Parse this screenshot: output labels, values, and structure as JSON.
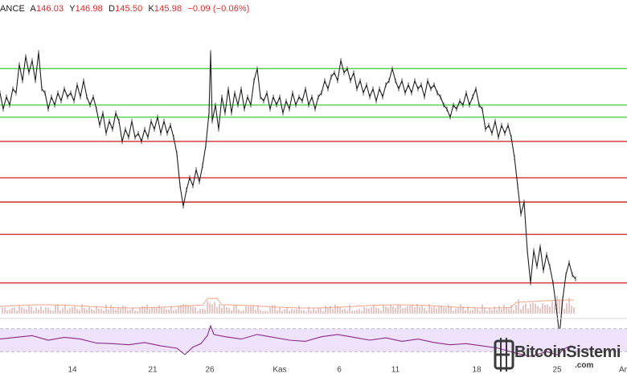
{
  "header": {
    "exchange_fragment": "ANCE",
    "open_label": "A",
    "open_value": "146.03",
    "high_label": "Y",
    "high_value": "146.98",
    "low_label": "D",
    "low_value": "145.50",
    "close_label": "K",
    "close_value": "145.98",
    "change": "−0.09 (−0.06%)"
  },
  "watermark": {
    "brand": "BitcoinSistemi",
    "suffix": ".com",
    "icon": "bitcoin-b-icon"
  },
  "colors": {
    "price_line": "#1f1f1f",
    "support_lines": "#4cd14c",
    "resistance_lines": "#d32f2f",
    "current_price_line": "#f2b4b4",
    "rsi_line": "#8a2b8a",
    "rsi_band_fill": "#efe2fb",
    "volume_bars": "#e6c8c8",
    "volume_ma": "#f0a58a"
  },
  "chart_data": {
    "type": "line",
    "xaxis_ticks": [
      "14",
      "21",
      "26",
      "Kas",
      "6",
      "11",
      "18",
      "25",
      "Ar"
    ],
    "horizontal_levels": {
      "green": [
        188.5,
        184.0,
        182.5
      ],
      "red": [
        179.5,
        175.0,
        172.0,
        168.0,
        162.0
      ],
      "current_price": 145.98
    },
    "price": {
      "ylim": [
        158,
        195
      ],
      "points": [
        [
          0,
          185.5
        ],
        [
          4,
          183.5
        ],
        [
          8,
          185
        ],
        [
          12,
          184
        ],
        [
          16,
          186
        ],
        [
          20,
          185.5
        ],
        [
          24,
          189
        ],
        [
          28,
          187
        ],
        [
          32,
          190
        ],
        [
          36,
          188
        ],
        [
          40,
          189.5
        ],
        [
          44,
          187
        ],
        [
          48,
          190.5
        ],
        [
          52,
          186
        ],
        [
          56,
          185.5
        ],
        [
          60,
          183.5
        ],
        [
          64,
          185
        ],
        [
          68,
          184
        ],
        [
          72,
          185.5
        ],
        [
          76,
          184.5
        ],
        [
          80,
          186
        ],
        [
          84,
          185
        ],
        [
          88,
          185.5
        ],
        [
          92,
          184.5
        ],
        [
          96,
          186.5
        ],
        [
          100,
          185
        ],
        [
          104,
          187
        ],
        [
          108,
          185
        ],
        [
          112,
          184
        ],
        [
          116,
          185
        ],
        [
          120,
          183.5
        ],
        [
          124,
          181.5
        ],
        [
          128,
          183
        ],
        [
          132,
          180.5
        ],
        [
          136,
          182
        ],
        [
          140,
          181
        ],
        [
          144,
          183
        ],
        [
          148,
          182
        ],
        [
          152,
          179.5
        ],
        [
          156,
          181
        ],
        [
          160,
          180
        ],
        [
          164,
          182
        ],
        [
          168,
          180
        ],
        [
          172,
          180.5
        ],
        [
          176,
          179.5
        ],
        [
          180,
          181
        ],
        [
          184,
          180
        ],
        [
          188,
          182
        ],
        [
          192,
          181
        ],
        [
          196,
          182.5
        ],
        [
          200,
          180.5
        ],
        [
          204,
          182
        ],
        [
          208,
          180.5
        ],
        [
          212,
          181.5
        ],
        [
          216,
          180
        ],
        [
          220,
          178
        ],
        [
          224,
          174
        ],
        [
          228,
          171.5
        ],
        [
          232,
          173.5
        ],
        [
          236,
          175
        ],
        [
          240,
          174
        ],
        [
          244,
          176
        ],
        [
          248,
          174.5
        ],
        [
          252,
          176.5
        ],
        [
          256,
          179
        ],
        [
          260,
          183
        ],
        [
          262,
          190.5
        ],
        [
          264,
          182
        ],
        [
          268,
          184
        ],
        [
          272,
          181
        ],
        [
          276,
          185
        ],
        [
          280,
          183
        ],
        [
          284,
          186
        ],
        [
          288,
          183
        ],
        [
          292,
          185.5
        ],
        [
          296,
          184
        ],
        [
          300,
          186
        ],
        [
          304,
          183.5
        ],
        [
          308,
          185
        ],
        [
          312,
          184
        ],
        [
          316,
          187
        ],
        [
          320,
          188.5
        ],
        [
          324,
          185
        ],
        [
          328,
          184.5
        ],
        [
          332,
          185.5
        ],
        [
          336,
          183.5
        ],
        [
          340,
          185
        ],
        [
          344,
          184
        ],
        [
          348,
          185
        ],
        [
          352,
          183
        ],
        [
          356,
          184.5
        ],
        [
          360,
          183.5
        ],
        [
          364,
          185.5
        ],
        [
          368,
          184
        ],
        [
          372,
          185
        ],
        [
          376,
          184.5
        ],
        [
          380,
          186
        ],
        [
          384,
          184
        ],
        [
          388,
          185
        ],
        [
          392,
          183.5
        ],
        [
          396,
          185
        ],
        [
          400,
          185.5
        ],
        [
          404,
          187
        ],
        [
          408,
          186
        ],
        [
          412,
          187.5
        ],
        [
          416,
          188
        ],
        [
          420,
          187
        ],
        [
          424,
          189.5
        ],
        [
          428,
          188
        ],
        [
          432,
          188.5
        ],
        [
          436,
          187
        ],
        [
          440,
          188
        ],
        [
          444,
          186
        ],
        [
          448,
          187
        ],
        [
          452,
          185.5
        ],
        [
          456,
          186.5
        ],
        [
          460,
          185
        ],
        [
          464,
          186
        ],
        [
          468,
          184.5
        ],
        [
          472,
          186
        ],
        [
          476,
          185
        ],
        [
          480,
          186.5
        ],
        [
          484,
          187
        ],
        [
          488,
          188.5
        ],
        [
          492,
          187
        ],
        [
          496,
          186
        ],
        [
          500,
          187
        ],
        [
          504,
          185.5
        ],
        [
          508,
          186.5
        ],
        [
          512,
          185.5
        ],
        [
          516,
          187
        ],
        [
          520,
          186
        ],
        [
          524,
          186.5
        ],
        [
          528,
          185
        ],
        [
          532,
          187
        ],
        [
          536,
          186
        ],
        [
          540,
          186.5
        ],
        [
          544,
          185.5
        ],
        [
          548,
          185
        ],
        [
          552,
          184
        ],
        [
          556,
          183.5
        ],
        [
          560,
          182.5
        ],
        [
          564,
          184
        ],
        [
          568,
          183.5
        ],
        [
          572,
          184.5
        ],
        [
          576,
          184
        ],
        [
          580,
          185.5
        ],
        [
          584,
          184
        ],
        [
          588,
          185
        ],
        [
          592,
          186
        ],
        [
          596,
          184
        ],
        [
          600,
          183.5
        ],
        [
          604,
          181
        ],
        [
          608,
          181.5
        ],
        [
          612,
          180.5
        ],
        [
          616,
          182
        ],
        [
          620,
          180
        ],
        [
          624,
          181.5
        ],
        [
          628,
          180.5
        ],
        [
          632,
          181.5
        ],
        [
          636,
          180
        ],
        [
          640,
          177.5
        ],
        [
          644,
          174
        ],
        [
          648,
          170.5
        ],
        [
          652,
          172
        ],
        [
          656,
          166
        ],
        [
          660,
          162
        ],
        [
          664,
          166
        ],
        [
          668,
          164
        ],
        [
          672,
          166.5
        ],
        [
          676,
          163.5
        ],
        [
          680,
          165.5
        ],
        [
          684,
          164
        ],
        [
          688,
          162
        ],
        [
          692,
          159
        ],
        [
          696,
          155.5
        ],
        [
          700,
          160
        ],
        [
          704,
          163
        ],
        [
          708,
          164.5
        ],
        [
          712,
          163
        ],
        [
          716,
          162.5
        ]
      ]
    },
    "rsi": {
      "ylim": [
        15,
        85
      ],
      "band": [
        30,
        70
      ],
      "points": [
        [
          0,
          52
        ],
        [
          20,
          55
        ],
        [
          40,
          58
        ],
        [
          60,
          50
        ],
        [
          80,
          55
        ],
        [
          100,
          52
        ],
        [
          120,
          45
        ],
        [
          140,
          44
        ],
        [
          160,
          42
        ],
        [
          180,
          46
        ],
        [
          200,
          40
        ],
        [
          220,
          36
        ],
        [
          230,
          25
        ],
        [
          240,
          38
        ],
        [
          250,
          44
        ],
        [
          258,
          58
        ],
        [
          262,
          75
        ],
        [
          266,
          60
        ],
        [
          280,
          56
        ],
        [
          300,
          52
        ],
        [
          320,
          60
        ],
        [
          340,
          55
        ],
        [
          360,
          50
        ],
        [
          380,
          48
        ],
        [
          400,
          56
        ],
        [
          420,
          60
        ],
        [
          440,
          55
        ],
        [
          460,
          50
        ],
        [
          480,
          54
        ],
        [
          500,
          48
        ],
        [
          520,
          52
        ],
        [
          540,
          46
        ],
        [
          560,
          42
        ],
        [
          580,
          44
        ],
        [
          600,
          40
        ],
        [
          620,
          36
        ],
        [
          640,
          28
        ],
        [
          660,
          22
        ],
        [
          680,
          30
        ],
        [
          695,
          24
        ],
        [
          700,
          34
        ],
        [
          710,
          40
        ],
        [
          716,
          38
        ]
      ]
    }
  }
}
